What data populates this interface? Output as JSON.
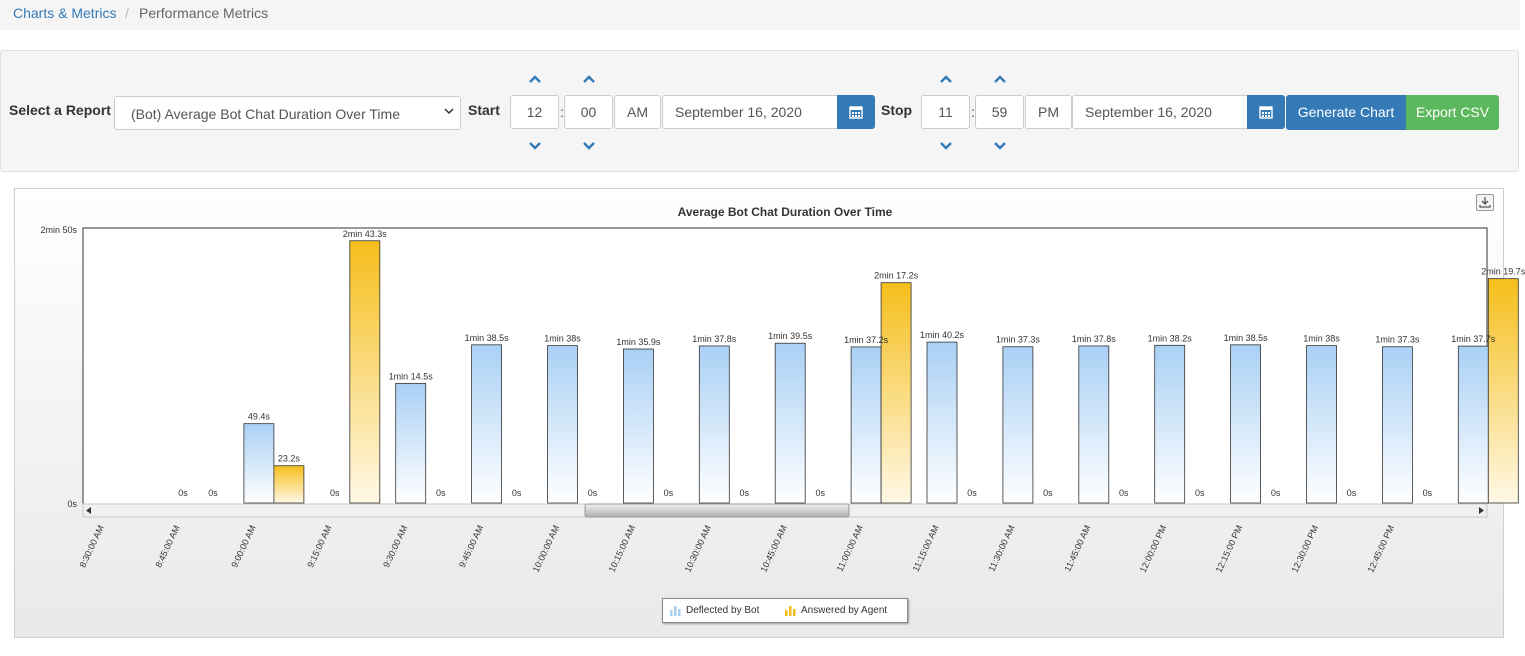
{
  "breadcrumb": {
    "parent": "Charts & Metrics",
    "separator": "/",
    "current": "Performance Metrics"
  },
  "controls": {
    "select_report_label": "Select a Report",
    "report_value": "(Bot) Average Bot Chat Duration Over Time",
    "start_label": "Start",
    "start_hour": "12",
    "start_minute": "00",
    "start_ampm": "AM",
    "start_date": "September 16, 2020",
    "stop_label": "Stop",
    "stop_hour": "11",
    "stop_minute": "59",
    "stop_ampm": "PM",
    "stop_date": "September 16, 2020",
    "time_separator": ":",
    "generate_label": "Generate Chart",
    "export_label": "Export CSV",
    "icons": {
      "calendar": "calendar-icon",
      "increment": "chevron-up-icon",
      "decrement": "chevron-down-icon",
      "dropdown": "chevron-down-icon",
      "download": "download-icon"
    },
    "colors": {
      "primary": "#337ab7",
      "success": "#5cb85c"
    }
  },
  "legend": {
    "deflected": "Deflected by Bot",
    "answered": "Answered by Agent"
  },
  "chart_data": {
    "type": "bar",
    "title": "Average Bot Chat Duration Over Time",
    "xlabel": "",
    "ylabel": "",
    "ylim": [
      0,
      170
    ],
    "y_tick_labels": [
      "0s",
      "2min 50s"
    ],
    "categories": [
      "8:30:00 AM",
      "8:45:00 AM",
      "9:00:00 AM",
      "9:15:00 AM",
      "9:30:00 AM",
      "9:45:00 AM",
      "10:00:00 AM",
      "10:15:00 AM",
      "10:30:00 AM",
      "10:45:00 AM",
      "11:00:00 AM",
      "11:15:00 AM",
      "11:30:00 AM",
      "11:45:00 AM",
      "12:00:00 PM",
      "12:15:00 PM",
      "12:30:00 PM",
      "12:45:00 PM"
    ],
    "series": [
      {
        "name": "Deflected by Bot",
        "color": "#a9d0f5",
        "values": [
          0,
          49.4,
          0,
          74.5,
          98.5,
          98,
          95.9,
          97.8,
          99.5,
          97.2,
          100.2,
          97.3,
          97.8,
          98.2,
          98.5,
          98,
          97.3,
          97.7
        ],
        "labels": [
          "0s",
          "49.4s",
          "0s",
          "1min 14.5s",
          "1min 38.5s",
          "1min 38s",
          "1min 35.9s",
          "1min 37.8s",
          "1min 39.5s",
          "1min 37.2s",
          "1min 40.2s",
          "1min 37.3s",
          "1min 37.8s",
          "1min 38.2s",
          "1min 38.5s",
          "1min 38s",
          "1min 37.3s",
          "1min 37.7s"
        ]
      },
      {
        "name": "Answered by Agent",
        "color": "#f5be1b",
        "values": [
          0,
          23.2,
          163.3,
          0,
          0,
          0,
          0,
          0,
          0,
          137.2,
          0,
          0,
          0,
          0,
          0,
          0,
          0,
          139.7
        ],
        "labels": [
          "0s",
          "23.2s",
          "2min 43.3s",
          "0s",
          "0s",
          "0s",
          "0s",
          "0s",
          "0s",
          "2min 17.2s",
          "0s",
          "0s",
          "0s",
          "0s",
          "0s",
          "0s",
          "0s",
          "2min 19.7s"
        ]
      }
    ],
    "legend_position": "bottom-center",
    "grid": false,
    "scrollbar": true
  }
}
